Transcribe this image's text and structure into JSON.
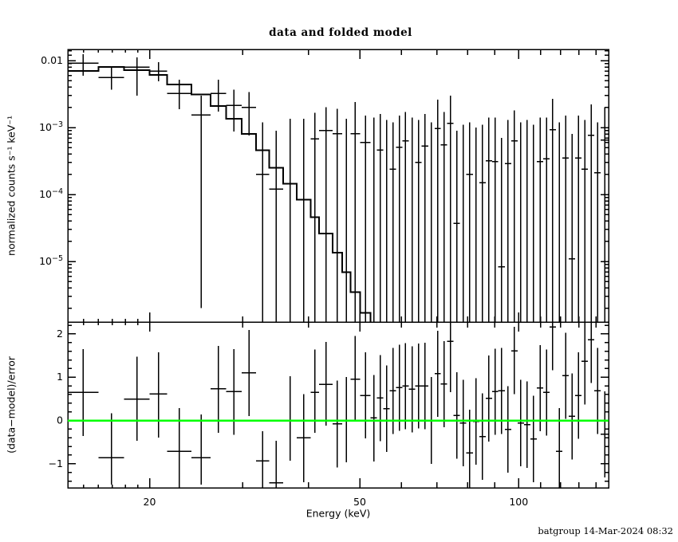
{
  "title": "data and folded model",
  "footer": "batgroup 14-Mar-2024 08:32",
  "labels": {
    "x": "Energy (keV)",
    "y_top": "normalized counts s⁻¹ keV⁻¹",
    "y_bottom": "(data−model)/error"
  },
  "colors": {
    "foreground": "#000000",
    "background": "#ffffff",
    "zero_line": "#00ff00"
  },
  "chart_data": {
    "type": "scatter",
    "title": "data and folded model",
    "xlabel": "Energy (keV)",
    "xscale": "log",
    "xlim": [
      14,
      148
    ],
    "xticks": {
      "labeled": [
        {
          "v": 20,
          "label": "20"
        },
        {
          "v": 50,
          "label": "50"
        },
        {
          "v": 100,
          "label": "100"
        }
      ],
      "major": [
        20,
        30,
        40,
        50,
        60,
        70,
        80,
        90,
        100,
        110,
        120,
        130,
        140
      ],
      "minor": [
        15,
        16,
        17,
        18,
        19
      ]
    },
    "top_panel": {
      "ylabel": "normalized counts s⁻¹ keV⁻¹",
      "yscale": "log",
      "ylim": [
        1.3e-06,
        0.0147
      ],
      "yticks": [
        {
          "v": 0.01,
          "m": "0.01",
          "e": null
        },
        {
          "v": 0.001,
          "m": "10",
          "e": "−3"
        },
        {
          "v": 0.0001,
          "m": "10",
          "e": "−4"
        },
        {
          "v": 1e-05,
          "m": "10",
          "e": "−5"
        }
      ],
      "extra_minor_ticks": [
        0.012,
        0.014
      ],
      "series": [
        "data",
        "folded model"
      ]
    },
    "bottom_panel": {
      "ylabel": "(data−model)/error",
      "yscale": "linear",
      "ylim": [
        -1.556,
        2.274
      ],
      "yticks": [
        {
          "v": 2,
          "label": "2"
        },
        {
          "v": 1,
          "label": "1"
        },
        {
          "v": 0,
          "label": "0"
        },
        {
          "v": -1,
          "label": "−1"
        }
      ],
      "minor_step": 0.2,
      "zero_line": {
        "y": 0,
        "color": "#00ff00"
      }
    },
    "bin_fields": [
      "e_lo_keV",
      "e_hi_keV",
      "model_rate",
      "data_rate",
      "rate_err_lo",
      "rate_err_hi",
      "resid",
      "resid_err_lo",
      "resid_err_hi"
    ],
    "bins": [
      [
        14.0,
        16.0,
        0.007,
        0.0092,
        0.0059,
        0.0125,
        0.65,
        -0.36,
        1.65
      ],
      [
        16.0,
        17.9,
        0.008,
        0.0056,
        0.0037,
        0.008,
        -0.86,
        -1.48,
        0.17
      ],
      [
        17.9,
        20.0,
        0.0072,
        0.008,
        0.003,
        0.0112,
        0.49,
        -0.47,
        1.47
      ],
      [
        20.0,
        21.6,
        0.0061,
        0.007,
        0.0049,
        0.0095,
        0.61,
        -0.4,
        1.57
      ],
      [
        21.6,
        24.0,
        0.0044,
        0.00325,
        0.00187,
        0.0052,
        -0.71,
        -1.7,
        0.29
      ],
      [
        24.0,
        26.1,
        0.0031,
        0.00155,
        2e-06,
        0.003,
        -0.86,
        -1.48,
        0.14
      ],
      [
        26.1,
        27.9,
        0.0021,
        0.00325,
        0.00173,
        0.0052,
        0.73,
        -0.29,
        1.72
      ],
      [
        27.9,
        29.9,
        0.00135,
        0.00215,
        0.00087,
        0.0037,
        0.67,
        -0.33,
        1.65
      ],
      [
        29.9,
        31.8,
        0.0008,
        0.002,
        0.00076,
        0.0034,
        1.1,
        0.1,
        2.09
      ],
      [
        31.8,
        33.7,
        0.00046,
        0.0002,
        1e-07,
        0.0012,
        -0.93,
        -1.8,
        -0.25
      ],
      [
        33.7,
        35.8,
        0.00025,
        0.00012,
        1e-07,
        0.0009,
        -1.44,
        -1.9,
        -0.47
      ],
      [
        35.8,
        38.0,
        0.000145,
        null,
        1e-07,
        0.00135,
        null,
        -0.93,
        1.02
      ],
      [
        38.0,
        40.4,
        8.4e-05,
        null,
        1e-07,
        0.00135,
        -0.4,
        -1.43,
        0.61
      ],
      [
        40.4,
        41.9,
        4.6e-05,
        0.00068,
        1e-07,
        0.00165,
        0.65,
        -0.29,
        1.64
      ],
      [
        41.9,
        44.4,
        2.6e-05,
        0.0009,
        1e-07,
        0.002,
        0.83,
        -0.12,
        1.81
      ],
      [
        44.4,
        46.3,
        1.36e-05,
        0.00081,
        1e-07,
        0.0019,
        -0.08,
        -1.09,
        0.92
      ],
      [
        46.3,
        48.0,
        6.9e-06,
        null,
        1e-07,
        0.00135,
        null,
        -0.97,
        1.0
      ],
      [
        48.0,
        50.1,
        3.5e-06,
        0.00081,
        1e-07,
        0.0024,
        0.95,
        0.0,
        1.95
      ],
      [
        50.1,
        52.4,
        1.7e-06,
        0.0006,
        1e-07,
        0.0015,
        0.58,
        -0.41,
        1.57
      ],
      [
        52.4,
        53.9,
        1e-07,
        null,
        1e-07,
        0.0014,
        0.06,
        -0.95,
        1.05
      ],
      [
        53.9,
        55.4,
        1e-07,
        0.00046,
        1e-07,
        0.0016,
        0.52,
        -0.48,
        1.51
      ],
      [
        55.4,
        57.0,
        1e-07,
        null,
        1e-07,
        0.0013,
        0.27,
        -0.73,
        1.27
      ],
      [
        57.0,
        58.6,
        1e-07,
        0.00024,
        1e-07,
        0.0012,
        0.69,
        -0.31,
        1.68
      ],
      [
        58.6,
        60.2,
        1e-07,
        0.00051,
        1e-07,
        0.0015,
        0.76,
        -0.24,
        1.75
      ],
      [
        60.2,
        61.9,
        1e-07,
        0.00063,
        1e-07,
        0.0017,
        0.8,
        -0.2,
        1.79
      ],
      [
        61.9,
        63.7,
        1e-07,
        null,
        1e-07,
        0.0014,
        0.72,
        -0.28,
        1.71
      ],
      [
        63.7,
        65.5,
        1e-07,
        0.0003,
        1e-07,
        0.0013,
        0.8,
        -0.18,
        1.78
      ],
      [
        65.5,
        67.4,
        1e-07,
        0.00053,
        1e-07,
        0.0016,
        0.8,
        -0.2,
        1.8
      ],
      [
        67.4,
        69.3,
        1e-07,
        null,
        1e-07,
        0.0012,
        null,
        -1.0,
        1.0
      ],
      [
        69.3,
        71.2,
        1e-07,
        0.00097,
        1e-07,
        0.0026,
        1.08,
        0.08,
        2.07
      ],
      [
        71.2,
        73.2,
        1e-07,
        0.00055,
        1e-07,
        0.0017,
        0.84,
        -0.16,
        1.83
      ],
      [
        73.2,
        75.3,
        1e-07,
        0.00115,
        1e-07,
        0.003,
        1.83,
        0.65,
        2.4
      ],
      [
        75.3,
        77.4,
        1e-07,
        3.7e-05,
        1e-07,
        0.0009,
        0.12,
        -0.88,
        1.11
      ],
      [
        77.4,
        79.6,
        1e-07,
        null,
        1e-07,
        0.0011,
        -0.06,
        -1.06,
        0.94
      ],
      [
        79.6,
        81.9,
        1e-07,
        0.0002,
        1e-07,
        0.0012,
        -0.75,
        -1.9,
        0.25
      ],
      [
        81.9,
        84.2,
        1e-07,
        null,
        1e-07,
        0.001,
        -0.02,
        -1.02,
        0.98
      ],
      [
        84.2,
        86.6,
        1e-07,
        0.00015,
        1e-07,
        0.0011,
        -0.37,
        -1.37,
        0.63
      ],
      [
        86.6,
        89.0,
        1e-07,
        0.00032,
        1e-07,
        0.0014,
        0.51,
        -0.49,
        1.5
      ],
      [
        89.0,
        91.5,
        1e-07,
        0.00031,
        1e-07,
        0.0014,
        0.67,
        -0.33,
        1.66
      ],
      [
        91.5,
        94.1,
        1e-07,
        8.3e-06,
        1e-07,
        0.0007,
        0.69,
        -0.31,
        1.68
      ],
      [
        94.1,
        96.8,
        1e-07,
        0.00029,
        1e-07,
        0.0013,
        -0.21,
        -1.21,
        0.79
      ],
      [
        96.8,
        99.5,
        1e-07,
        0.00063,
        1e-07,
        0.0018,
        1.61,
        0.61,
        2.16
      ],
      [
        99.5,
        102.3,
        1e-07,
        null,
        1e-07,
        0.0012,
        -0.06,
        -1.06,
        0.94
      ],
      [
        102.3,
        105.2,
        1e-07,
        null,
        1e-07,
        0.0013,
        -0.1,
        -1.1,
        0.9
      ],
      [
        105.2,
        108.2,
        1e-07,
        null,
        1e-07,
        0.0011,
        -0.43,
        -1.43,
        0.57
      ],
      [
        108.2,
        111.3,
        1e-07,
        0.00031,
        1e-07,
        0.0014,
        0.75,
        -0.25,
        1.74
      ],
      [
        111.3,
        114.4,
        1e-07,
        0.00034,
        1e-07,
        0.0014,
        0.65,
        -0.35,
        1.64
      ],
      [
        114.4,
        117.6,
        1e-07,
        0.00093,
        1e-07,
        0.0027,
        2.16,
        1.16,
        2.6
      ],
      [
        117.6,
        121.0,
        1e-07,
        null,
        1e-07,
        0.0012,
        -0.71,
        -1.9,
        0.29
      ],
      [
        121.0,
        124.4,
        1e-07,
        0.00035,
        1e-07,
        0.0015,
        1.04,
        0.04,
        2.03
      ],
      [
        124.4,
        127.9,
        1e-07,
        1.1e-05,
        1e-07,
        0.0008,
        0.1,
        -0.9,
        1.09
      ],
      [
        127.9,
        131.5,
        1e-07,
        0.00035,
        1e-07,
        0.0015,
        0.58,
        -0.42,
        1.57
      ],
      [
        131.5,
        135.2,
        1e-07,
        0.00024,
        1e-07,
        0.0013,
        1.37,
        0.37,
        2.36
      ],
      [
        135.2,
        139.1,
        1e-07,
        0.00077,
        1e-07,
        0.0022,
        1.87,
        0.87,
        2.6
      ],
      [
        139.1,
        143.0,
        1e-07,
        0.00021,
        1e-07,
        0.0012,
        0.69,
        -0.31,
        1.68
      ],
      [
        143.0,
        148.0,
        1e-07,
        0.00065,
        1e-07,
        0.002,
        -0.32,
        -1.32,
        0.67
      ]
    ]
  }
}
